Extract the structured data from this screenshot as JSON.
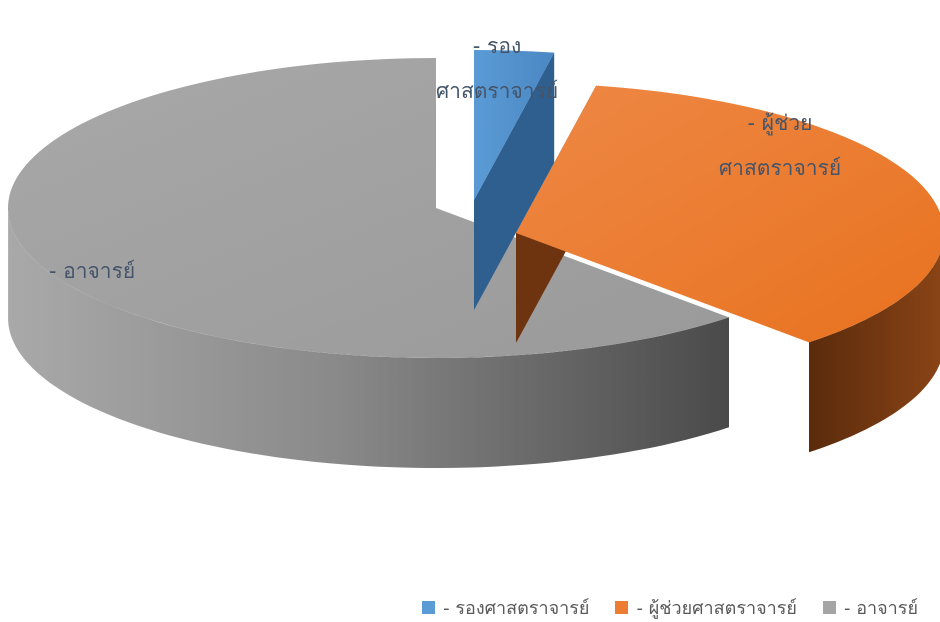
{
  "chart_data": {
    "type": "pie",
    "title": "",
    "legend_position": "bottom-right",
    "three_d": true,
    "slices": [
      {
        "label": "- รองศาสตราจารย์",
        "value": 3,
        "color": "#5b9bd5",
        "exploded": true
      },
      {
        "label": "- ผู้ช่วยศาสตราจารย์",
        "value": 35,
        "color": "#ed7d31",
        "exploded": true
      },
      {
        "label": "- อาจารย์",
        "value": 62,
        "color": "#a5a5a5",
        "exploded": false
      }
    ],
    "slice_labels": {
      "slice_0": [
        "- รอง",
        "ศาสตราจารย์"
      ],
      "slice_1": [
        "- ผู้ช่วย",
        "ศาสตราจารย์"
      ],
      "slice_2": [
        "- อาจารย์"
      ]
    }
  }
}
